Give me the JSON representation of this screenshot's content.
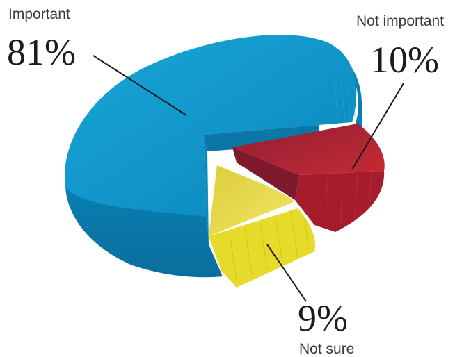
{
  "chart_data": {
    "type": "pie",
    "title": "",
    "categories": [
      "Important",
      "Not important",
      "Not sure"
    ],
    "values": [
      81,
      10,
      9
    ],
    "value_labels": [
      "81%",
      "10%",
      "9%"
    ],
    "colors": [
      "#0a8fc4",
      "#b3202c",
      "#e3d827"
    ],
    "legend": "none",
    "style": "3d-exploded"
  }
}
